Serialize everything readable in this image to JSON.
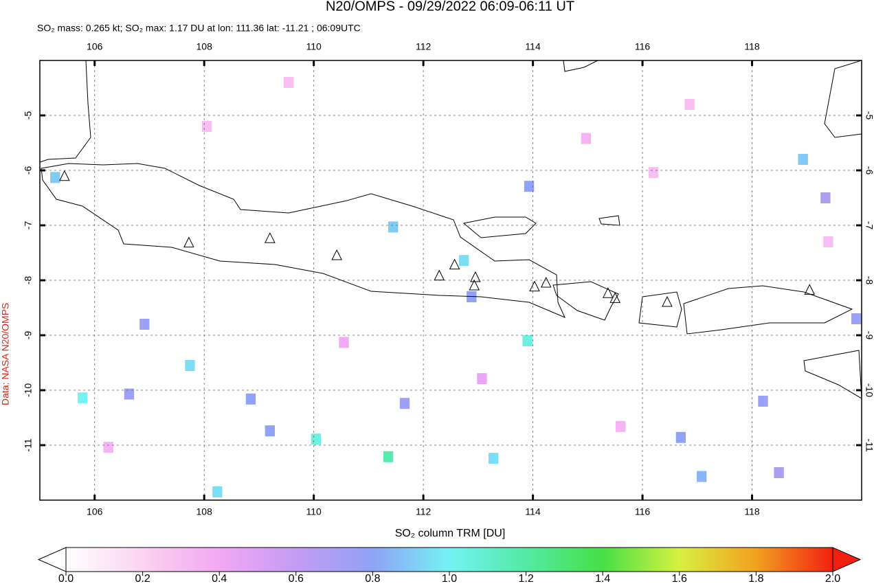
{
  "chart_data": {
    "type": "map",
    "title": "N20/OMPS - 09/29/2022 06:09-06:11 UT",
    "subtitle": "SO₂ mass: 0.265 kt; SO₂ max: 1.17 DU at lon: 111.36 lat: -11.21 ; 06:09UTC",
    "side_label": "Data: NASA N20/OMPS",
    "colorbar_label": "SO₂ column TRM [DU]",
    "xlim": [
      105,
      120
    ],
    "ylim": [
      -12,
      -4
    ],
    "xticks": [
      106,
      108,
      110,
      112,
      114,
      116,
      118
    ],
    "yticks": [
      -5,
      -6,
      -7,
      -8,
      -9,
      -10,
      -11
    ],
    "grid": true,
    "colorbar": {
      "lim": [
        0,
        2
      ],
      "ticks": [
        {
          "value": 0,
          "label": "0.0"
        },
        {
          "value": 0.2,
          "label": "0.2"
        },
        {
          "value": 0.4,
          "label": "0.4"
        },
        {
          "value": 0.6,
          "label": "0.6"
        },
        {
          "value": 0.8,
          "label": "0.8"
        },
        {
          "value": 1,
          "label": "1.0"
        },
        {
          "value": 1.2,
          "label": "1.2"
        },
        {
          "value": 1.4,
          "label": "1.4"
        },
        {
          "value": 1.6,
          "label": "1.6"
        },
        {
          "value": 1.8,
          "label": "1.8"
        },
        {
          "value": 2,
          "label": "2.0"
        }
      ],
      "colors": [
        "#ffffff",
        "#fbd3f0",
        "#f2a8f2",
        "#c49cf4",
        "#8fa2f6",
        "#74f2f4",
        "#52eaa4",
        "#46e046",
        "#d8f040",
        "#f2a020",
        "#f22010"
      ]
    },
    "pixels": {
      "lon": [
        105.28,
        105.78,
        107.74,
        108.24,
        110.04,
        111.36,
        112.74,
        113.93,
        113.9,
        118.93,
        111.45,
        113.28,
        119.34,
        106.91,
        106.63,
        111.66,
        116.7,
        117.08,
        112.88,
        118.49,
        119.9,
        118.2,
        109.2,
        108.85,
        108.05,
        114.97,
        116.2,
        110.55,
        106.25,
        109.54,
        116.86,
        119.39,
        113.07,
        115.6
      ],
      "lat": [
        -6.13,
        -10.14,
        -9.55,
        -11.85,
        -10.89,
        -11.21,
        -7.64,
        -6.29,
        -9.1,
        -5.8,
        -7.03,
        -11.24,
        -6.5,
        -8.8,
        -10.07,
        -10.24,
        -10.86,
        -11.57,
        -8.3,
        -11.5,
        -8.7,
        -10.2,
        -10.74,
        -10.16,
        -5.2,
        -5.42,
        -6.04,
        -9.13,
        -11.04,
        -4.4,
        -4.8,
        -7.3,
        -9.79,
        -10.66
      ],
      "values": [
        0.9,
        1.0,
        0.95,
        0.95,
        1.05,
        1.17,
        0.95,
        0.8,
        1.05,
        0.9,
        0.9,
        0.95,
        0.7,
        0.75,
        0.75,
        0.75,
        0.8,
        0.85,
        0.8,
        0.7,
        0.75,
        0.75,
        0.8,
        0.8,
        0.3,
        0.35,
        0.3,
        0.4,
        0.35,
        0.3,
        0.3,
        0.3,
        0.45,
        0.35
      ]
    },
    "volcanoes": {
      "lon": [
        105.45,
        107.72,
        109.2,
        110.42,
        112.29,
        112.57,
        112.95,
        112.93,
        114.03,
        114.24,
        115.37,
        115.5,
        116.45,
        119.05
      ],
      "lat": [
        -6.11,
        -7.32,
        -7.24,
        -7.55,
        -7.92,
        -7.72,
        -7.95,
        -8.1,
        -8.12,
        -8.05,
        -8.24,
        -8.33,
        -8.4,
        -8.18
      ]
    }
  }
}
